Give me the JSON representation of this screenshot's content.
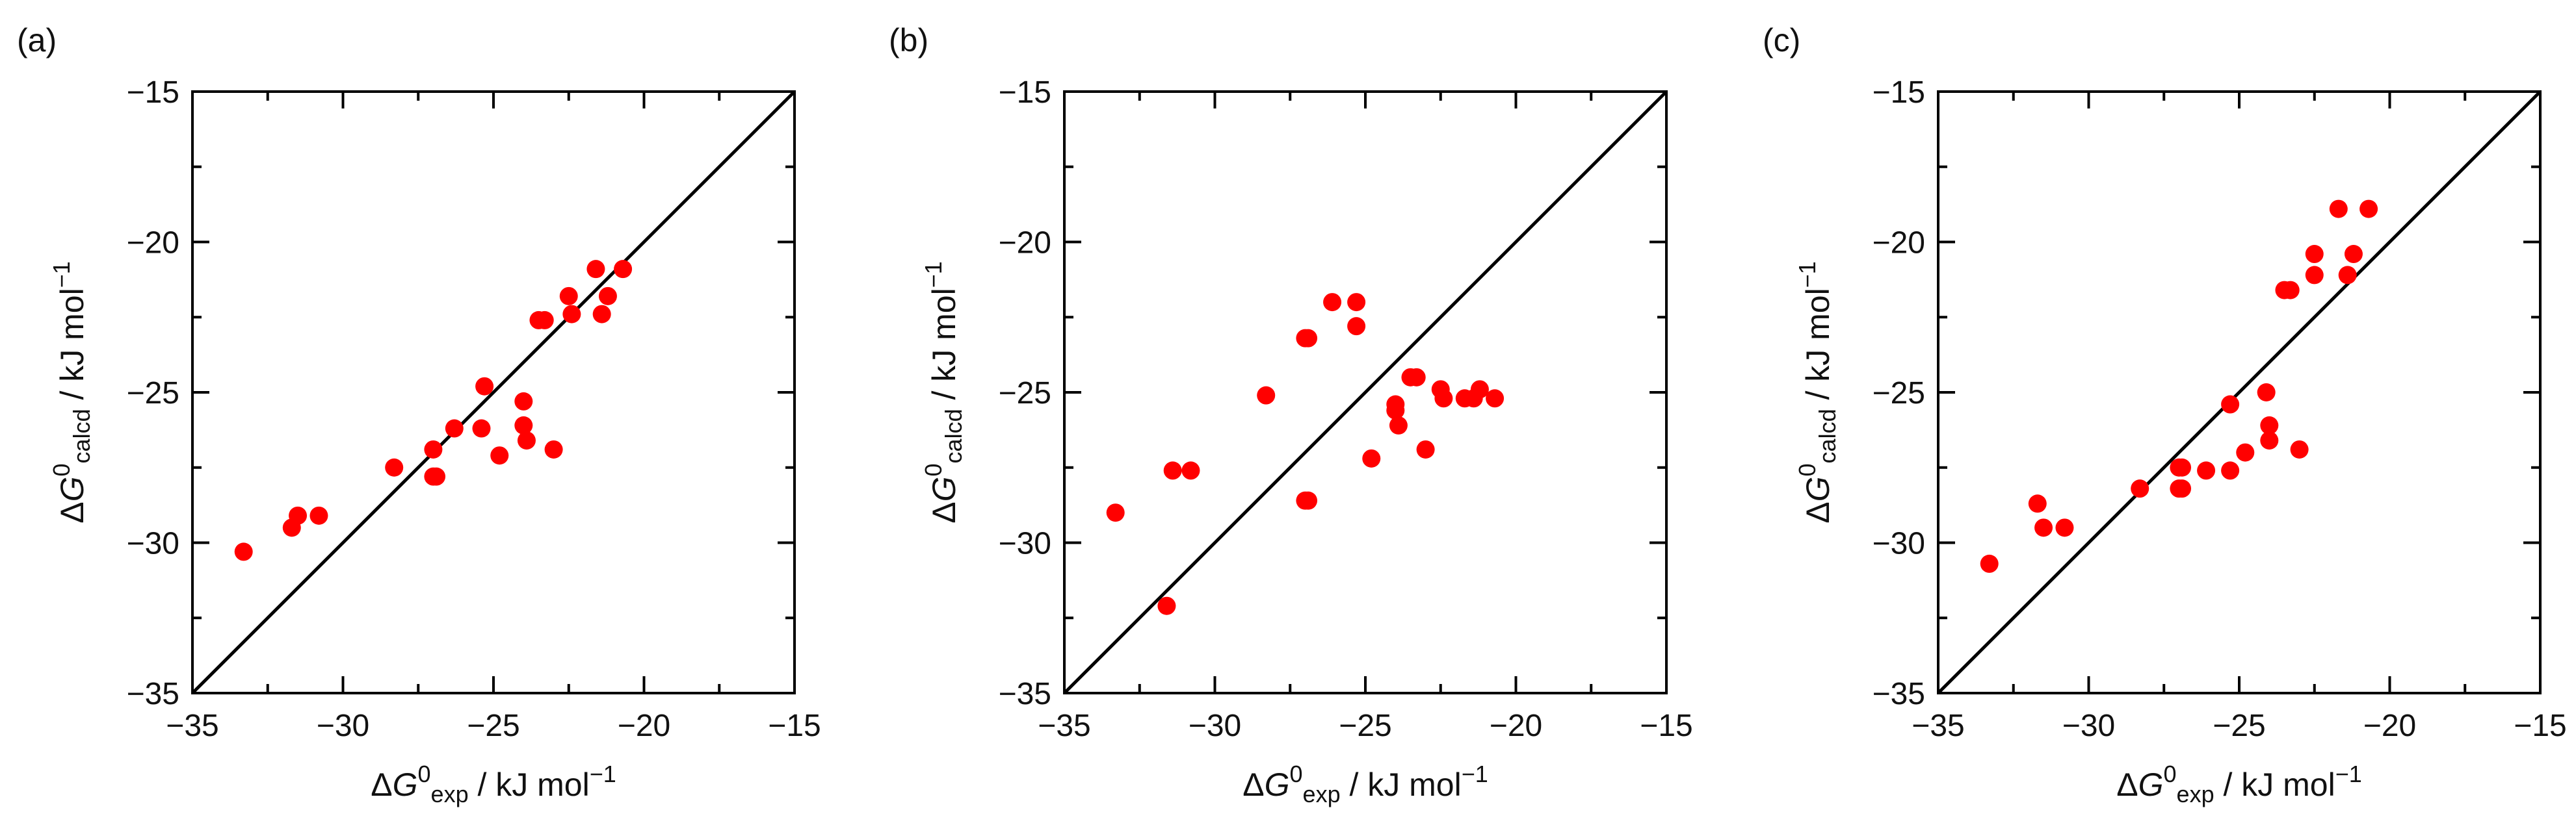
{
  "figure": {
    "point_color": "#ff0000",
    "line_color": "#000000"
  },
  "chart_data": [
    {
      "type": "scatter",
      "panel_label": "(a)",
      "xlabel": {
        "prefix": "Δ",
        "var": "G",
        "sup": "0",
        "sub": "exp",
        "suffix": " / kJ mol",
        "unit_sup": "−1"
      },
      "ylabel": {
        "prefix": "Δ",
        "var": "G",
        "sup": "0",
        "sub": "calcd",
        "suffix": " / kJ mol",
        "unit_sup": "−1"
      },
      "xlim": [
        -35,
        -15
      ],
      "ylim": [
        -35,
        -15
      ],
      "xticks": [
        -35,
        -30,
        -25,
        -20,
        -15
      ],
      "yticks": [
        -35,
        -30,
        -25,
        -20,
        -15
      ],
      "xtick_labels": [
        "−35",
        "−30",
        "−25",
        "−20",
        "−15"
      ],
      "ytick_labels": [
        "−35",
        "−30",
        "−25",
        "−20",
        "−15"
      ],
      "reference_line": "y = x",
      "series": [
        {
          "name": "calculated vs experimental",
          "points": [
            [
              -33.3,
              -30.3
            ],
            [
              -31.7,
              -29.5
            ],
            [
              -31.5,
              -29.1
            ],
            [
              -30.8,
              -29.1
            ],
            [
              -28.3,
              -27.5
            ],
            [
              -27.0,
              -26.9
            ],
            [
              -27.0,
              -27.8
            ],
            [
              -26.9,
              -27.8
            ],
            [
              -26.3,
              -26.2
            ],
            [
              -25.4,
              -26.2
            ],
            [
              -25.3,
              -24.8
            ],
            [
              -24.8,
              -27.1
            ],
            [
              -24.0,
              -25.3
            ],
            [
              -24.0,
              -26.1
            ],
            [
              -23.9,
              -26.6
            ],
            [
              -23.5,
              -22.6
            ],
            [
              -23.3,
              -22.6
            ],
            [
              -23.0,
              -26.9
            ],
            [
              -22.5,
              -21.8
            ],
            [
              -22.4,
              -22.4
            ],
            [
              -21.6,
              -20.9
            ],
            [
              -21.4,
              -22.4
            ],
            [
              -21.2,
              -21.8
            ],
            [
              -20.7,
              -20.9
            ]
          ]
        }
      ]
    },
    {
      "type": "scatter",
      "panel_label": "(b)",
      "xlabel": {
        "prefix": "Δ",
        "var": "G",
        "sup": "0",
        "sub": "exp",
        "suffix": " / kJ mol",
        "unit_sup": "−1"
      },
      "ylabel": {
        "prefix": "Δ",
        "var": "G",
        "sup": "0",
        "sub": "calcd",
        "suffix": " / kJ mol",
        "unit_sup": "−1"
      },
      "xlim": [
        -35,
        -15
      ],
      "ylim": [
        -35,
        -15
      ],
      "xticks": [
        -35,
        -30,
        -25,
        -20,
        -15
      ],
      "yticks": [
        -35,
        -30,
        -25,
        -20,
        -15
      ],
      "xtick_labels": [
        "−35",
        "−30",
        "−25",
        "−20",
        "−15"
      ],
      "ytick_labels": [
        "−35",
        "−30",
        "−25",
        "−20",
        "−15"
      ],
      "reference_line": "y = x",
      "series": [
        {
          "name": "calculated vs experimental",
          "points": [
            [
              -33.3,
              -29.0
            ],
            [
              -31.6,
              -32.1
            ],
            [
              -31.4,
              -27.6
            ],
            [
              -30.8,
              -27.6
            ],
            [
              -28.3,
              -25.1
            ],
            [
              -27.0,
              -23.2
            ],
            [
              -26.9,
              -23.2
            ],
            [
              -27.0,
              -28.6
            ],
            [
              -26.9,
              -28.6
            ],
            [
              -26.1,
              -22.0
            ],
            [
              -25.3,
              -22.0
            ],
            [
              -25.3,
              -22.8
            ],
            [
              -24.8,
              -27.2
            ],
            [
              -24.0,
              -25.4
            ],
            [
              -24.0,
              -25.6
            ],
            [
              -23.9,
              -26.1
            ],
            [
              -23.5,
              -24.5
            ],
            [
              -23.3,
              -24.5
            ],
            [
              -23.0,
              -26.9
            ],
            [
              -22.5,
              -24.9
            ],
            [
              -22.4,
              -25.2
            ],
            [
              -21.7,
              -25.2
            ],
            [
              -21.4,
              -25.2
            ],
            [
              -21.2,
              -24.9
            ],
            [
              -20.7,
              -25.2
            ]
          ]
        }
      ]
    },
    {
      "type": "scatter",
      "panel_label": "(c)",
      "xlabel": {
        "prefix": "Δ",
        "var": "G",
        "sup": "0",
        "sub": "exp",
        "suffix": " / kJ mol",
        "unit_sup": "−1"
      },
      "ylabel": {
        "prefix": "Δ",
        "var": "G",
        "sup": "0",
        "sub": "calcd",
        "suffix": " / kJ mol",
        "unit_sup": "−1"
      },
      "xlim": [
        -35,
        -15
      ],
      "ylim": [
        -35,
        -15
      ],
      "xticks": [
        -35,
        -30,
        -25,
        -20,
        -15
      ],
      "yticks": [
        -35,
        -30,
        -25,
        -20,
        -15
      ],
      "xtick_labels": [
        "−35",
        "−30",
        "−25",
        "−20",
        "−15"
      ],
      "ytick_labels": [
        "−35",
        "−30",
        "−25",
        "−20",
        "−15"
      ],
      "reference_line": "y = x",
      "series": [
        {
          "name": "calculated vs experimental",
          "points": [
            [
              -33.3,
              -30.7
            ],
            [
              -31.7,
              -28.7
            ],
            [
              -31.5,
              -29.5
            ],
            [
              -30.8,
              -29.5
            ],
            [
              -28.3,
              -28.2
            ],
            [
              -27.0,
              -27.5
            ],
            [
              -27.0,
              -28.2
            ],
            [
              -26.9,
              -27.5
            ],
            [
              -26.9,
              -28.2
            ],
            [
              -26.1,
              -27.6
            ],
            [
              -25.3,
              -25.4
            ],
            [
              -25.3,
              -27.6
            ],
            [
              -24.8,
              -27.0
            ],
            [
              -24.1,
              -25.0
            ],
            [
              -24.0,
              -26.1
            ],
            [
              -24.0,
              -26.6
            ],
            [
              -23.5,
              -21.6
            ],
            [
              -23.3,
              -21.6
            ],
            [
              -23.0,
              -26.9
            ],
            [
              -22.5,
              -20.4
            ],
            [
              -22.5,
              -21.1
            ],
            [
              -21.7,
              -18.9
            ],
            [
              -21.4,
              -21.1
            ],
            [
              -21.2,
              -20.4
            ],
            [
              -20.7,
              -18.9
            ]
          ]
        }
      ]
    }
  ]
}
